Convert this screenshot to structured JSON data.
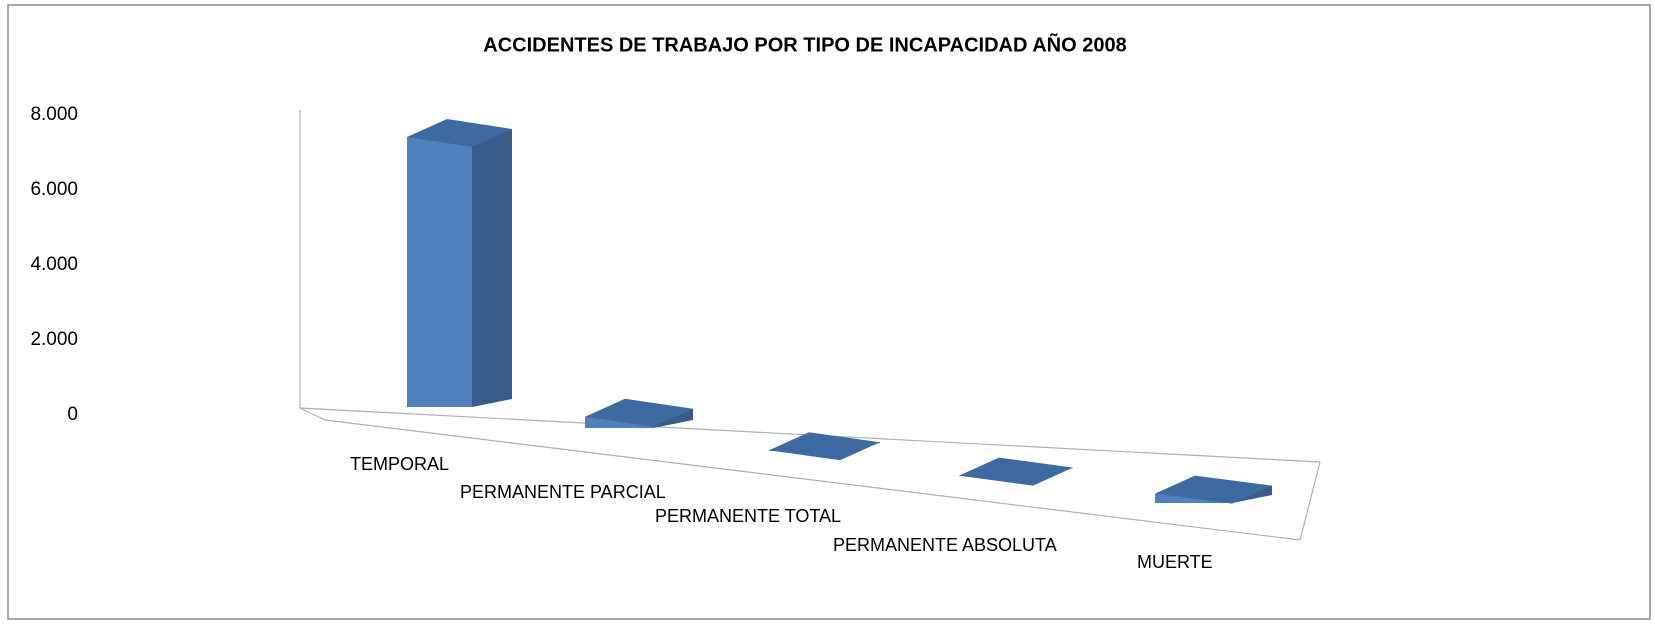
{
  "chart_data": {
    "type": "bar3d",
    "title": "ACCIDENTES DE TRABAJO POR TIPO DE INCAPACIDAD AÑO 2008",
    "categories": [
      "TEMPORAL",
      "PERMANENTE PARCIAL",
      "PERMANENTE TOTAL",
      "PERMANENTE ABSOLUTA",
      "MUERTE"
    ],
    "values": [
      7200,
      300,
      20,
      10,
      250
    ],
    "color": "#4f81bd",
    "ylim": [
      0,
      8000
    ],
    "yticks": [
      0,
      {
        "value": 2000,
        "label": "2.000"
      },
      {
        "value": 4000,
        "label": "4.000"
      },
      {
        "value": 6000,
        "label": "6.000"
      },
      {
        "value": 8000,
        "label": "8.000"
      }
    ]
  }
}
